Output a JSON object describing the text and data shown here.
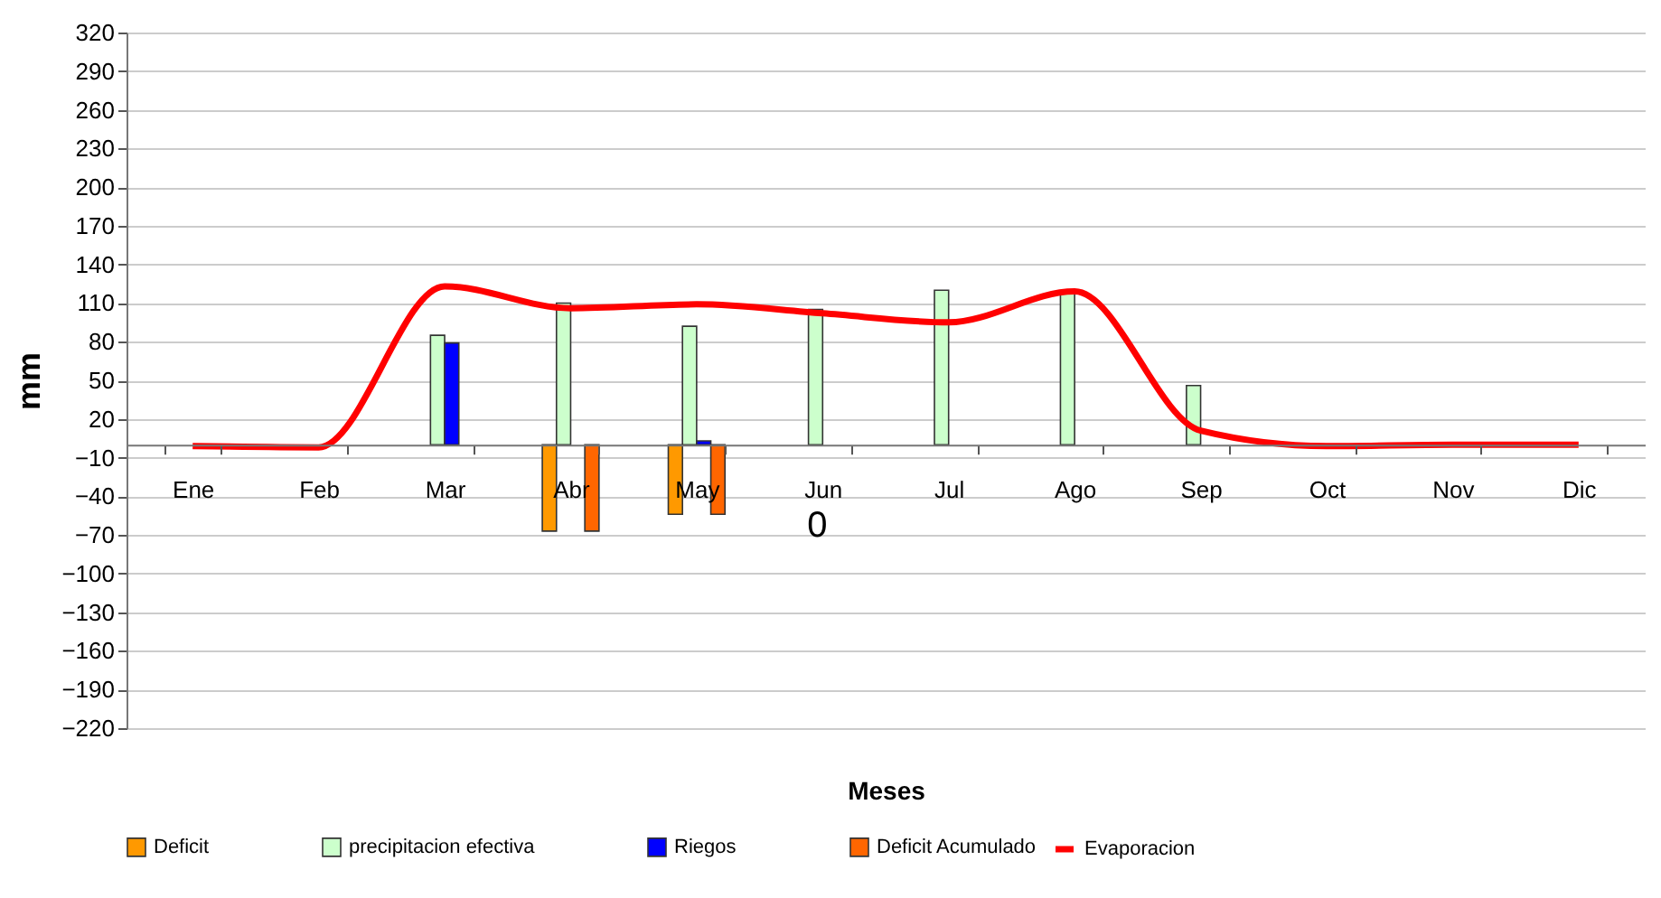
{
  "chart_data": {
    "type": "bar",
    "xlabel": "Meses",
    "ylabel": "mm",
    "categories": [
      "Ene",
      "Feb",
      "Mar",
      "Abr",
      "May",
      "Jun",
      "Jul",
      "Ago",
      "Sep",
      "Oct",
      "Nov",
      "Dic"
    ],
    "series": [
      {
        "name": "Deficit",
        "color": "#ff9900",
        "values": [
          null,
          null,
          null,
          -67,
          -54,
          null,
          null,
          null,
          null,
          null,
          null,
          null
        ]
      },
      {
        "name": "precipitacion efectiva",
        "color": "#ccffcc",
        "values": [
          null,
          null,
          85,
          110,
          92,
          105,
          120,
          118,
          46,
          null,
          null,
          null
        ]
      },
      {
        "name": "Riegos",
        "color": "#0000ff",
        "values": [
          null,
          null,
          79,
          null,
          3,
          null,
          null,
          null,
          null,
          null,
          null,
          null
        ]
      },
      {
        "name": "Deficit Acumulado",
        "color": "#ff6600",
        "values": [
          null,
          null,
          null,
          -67,
          -54,
          null,
          null,
          null,
          null,
          null,
          null,
          null
        ]
      },
      {
        "name": "Evaporacion",
        "type": "line",
        "color": "#ff0000",
        "values": [
          -1,
          -2,
          123,
          106,
          109,
          102,
          95,
          119,
          11,
          -1,
          0,
          0
        ]
      }
    ],
    "ylim": [
      -220,
      320
    ],
    "yticks": [
      320,
      290,
      260,
      230,
      200,
      170,
      140,
      110,
      80,
      50,
      20,
      -10,
      -40,
      -70,
      -100,
      -130,
      -160,
      -190,
      -220
    ],
    "grid": "y",
    "legend": "bottom",
    "annotations": [
      "0"
    ]
  }
}
